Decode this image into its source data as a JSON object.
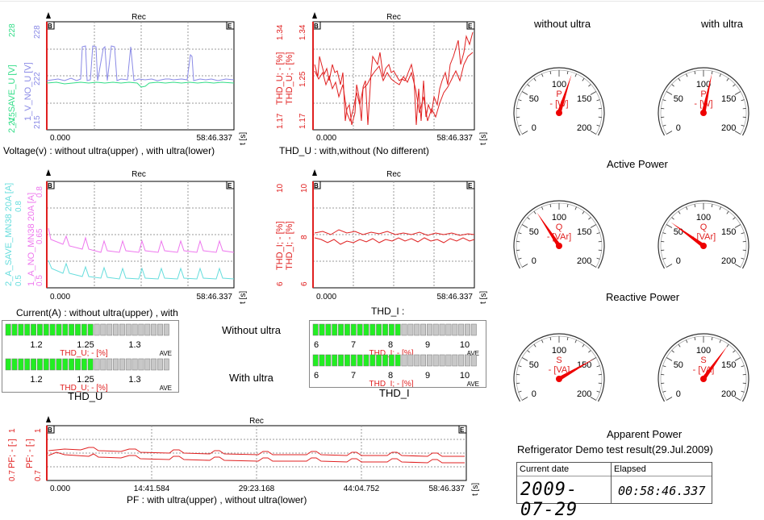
{
  "panels": {
    "voltage": {
      "rec": "Rec",
      "axis_left": {
        "label1": "2_V_SAVE_U [V]",
        "label2": "1_V_NO_U [V]",
        "ticks1": [
          "215",
          "228"
        ],
        "ticks2": [
          "215",
          "222",
          "222",
          "228"
        ]
      },
      "x_start": "0.000",
      "x_end": "58:46.337",
      "t_unit": "t [s]",
      "caption": "Voltage(v)  : without ultra(upper) ,  with ultra(lower)",
      "colors": {
        "series1": "#33dd88",
        "series2": "#8a8ae6"
      }
    },
    "thd_u": {
      "rec": "Rec",
      "axis_left": {
        "label1": "THD_U; - [%]",
        "label2": "THD_U; - [%]",
        "ticks": [
          "1.17",
          "1.17",
          "1.25",
          "1.25",
          "1.34",
          "1.34"
        ]
      },
      "x_start": "0.000",
      "x_end": "58:46.337",
      "t_unit": "t [s]",
      "caption": "THD_U : with,without (No different)",
      "colors": {
        "series": "#e02020"
      }
    },
    "current": {
      "rec": "Rec",
      "axis_left": {
        "label1": "2_A_SAVE_MN38 20A [A]",
        "label2": "1_A_NO_MN38 20A [A]",
        "ticks": [
          "0.5",
          "0.5",
          "0.65",
          "0.65",
          "0.8",
          "0.8"
        ]
      },
      "x_start": "0.000",
      "x_end": "58:46.337",
      "t_unit": "t [s]",
      "caption": "Current(A) : without ultra(upper) , with ultra(lower)",
      "colors": {
        "series1": "#ee77ee",
        "series2": "#66dddd"
      }
    },
    "thd_i": {
      "rec": "Rec",
      "axis_left": {
        "label1": "THD_I; - [%]",
        "label2": "THD_I; - [%]",
        "ticks": [
          "6",
          "6",
          "8",
          "8",
          "10",
          "10"
        ]
      },
      "x_start": "0.000",
      "x_end": "58:46.337",
      "t_unit": "t [s]",
      "caption": "THD_I :",
      "colors": {
        "series": "#e02020"
      }
    },
    "pf": {
      "rec": "Rec",
      "axis_left": {
        "label1": "PF; - [-]",
        "label2": "PF; - [-]",
        "ticks": [
          "0.7",
          "0.7",
          "1",
          "1"
        ]
      },
      "x_ticks": [
        "0.000",
        "14:41.584",
        "29:23.168",
        "44:04.752",
        "58:46.337"
      ],
      "t_unit": "t [s]",
      "caption": "PF : with ultra(upper) , without ultra(lower)",
      "colors": {
        "series": "#e02020"
      }
    }
  },
  "bars": {
    "thd_u": {
      "title": "THD_U",
      "rows": [
        {
          "level": 0.52,
          "ticks": [
            "1.2",
            "1.25",
            "1.3"
          ],
          "label": "THD_U; - [%]",
          "ave": "AVE"
        },
        {
          "level": 0.52,
          "ticks": [
            "1.2",
            "1.25",
            "1.3"
          ],
          "label": "THD_U; - [%]",
          "ave": "AVE"
        }
      ]
    },
    "thd_i": {
      "title": "THD_I",
      "rows": [
        {
          "level": 0.52,
          "ticks": [
            "6",
            "7",
            "8",
            "9",
            "10"
          ],
          "label": "THD_I; - [%]",
          "ave": "AVE"
        },
        {
          "level": 0.52,
          "ticks": [
            "6",
            "7",
            "8",
            "9",
            "10"
          ],
          "label": "THD_I; - [%]",
          "ave": "AVE"
        }
      ]
    },
    "without_ultra": "Without ultra",
    "with_ultra": "With ultra"
  },
  "gauges": {
    "col_without": "without ultra",
    "col_with": "with ultra",
    "ticks": [
      "0",
      "50",
      "100",
      "150",
      "200"
    ],
    "rows": [
      {
        "section": "Active Power",
        "name": "P",
        "unit": "- [W]",
        "values": [
          115,
          110
        ]
      },
      {
        "section": "Reactive Power",
        "name": "Q",
        "unit": "- [VAr]",
        "values": [
          72,
          55
        ]
      },
      {
        "section": "Apparent Power",
        "name": "S",
        "unit": "- [VA]",
        "values": [
          150,
          130
        ]
      }
    ]
  },
  "footer": {
    "title": "Refrigerator Demo test result(29.Jul.2009)",
    "date_label": "Current date",
    "date_value": "2009-07-29",
    "elapsed_label": "Elapsed",
    "elapsed_value": "00:58:46.337"
  }
}
